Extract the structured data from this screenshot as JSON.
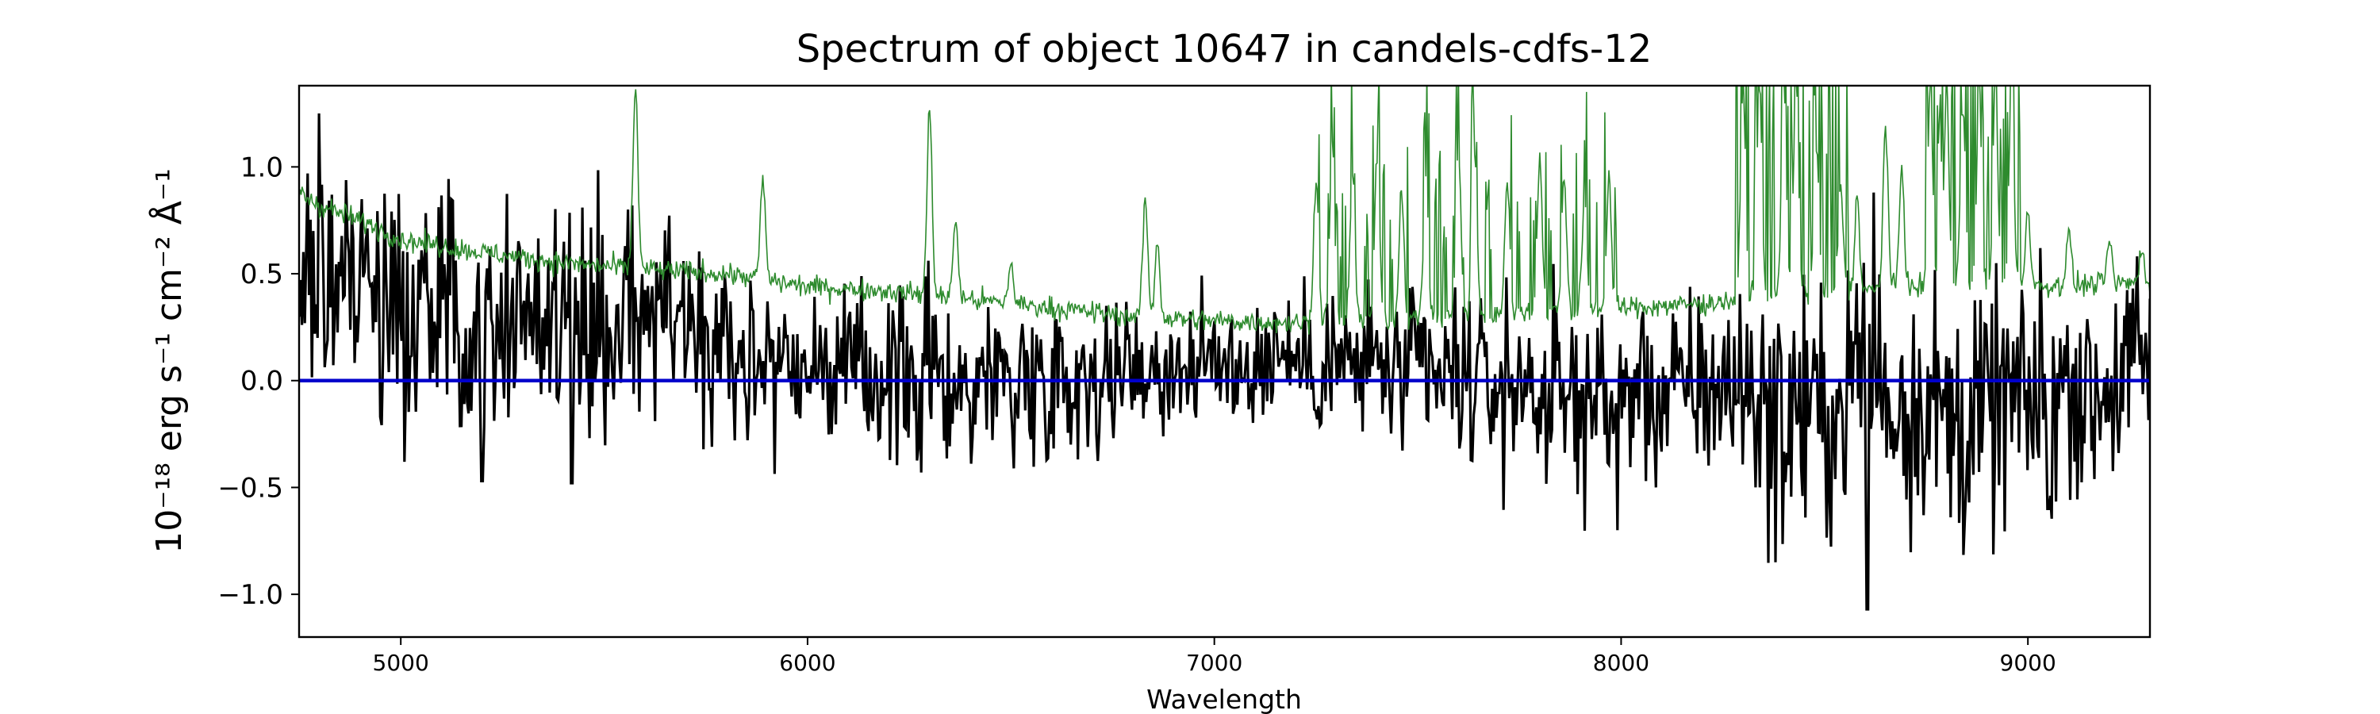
{
  "chart_data": {
    "type": "line",
    "title": "Spectrum of object 10647 in candels-cdfs-12",
    "xlabel": "Wavelength",
    "ylabel": "10⁻¹⁸ erg s⁻¹ cm⁻² Å⁻¹",
    "xlim": [
      4750,
      9300
    ],
    "ylim": [
      -1.2,
      1.38
    ],
    "xticks": [
      5000,
      6000,
      7000,
      8000,
      9000
    ],
    "xtick_labels": [
      "5000",
      "6000",
      "7000",
      "8000",
      "9000"
    ],
    "yticks": [
      -1.0,
      -0.5,
      0.0,
      0.5,
      1.0
    ],
    "ytick_labels": [
      "−1.0",
      "−0.5",
      "0.0",
      "0.5",
      "1.0"
    ],
    "grid": false,
    "colors": {
      "flux": "#000000",
      "sky": "#2e8b2e",
      "zero": "#0000cc",
      "axes": "#000000"
    },
    "series": [
      {
        "color": "#000000",
        "style": "flux",
        "x": [
          4750,
          4775,
          4800,
          4850,
          4900,
          4950,
          5000,
          5050,
          5100,
          5150,
          5200,
          5250,
          5300,
          5350,
          5400,
          5450,
          5500,
          5550,
          5600,
          5650,
          5700,
          5750,
          5800,
          5850,
          5900,
          5950,
          6000,
          6050,
          6100,
          6150,
          6200,
          6250,
          6300,
          6350,
          6400,
          6450,
          6500,
          6550,
          6600,
          6650,
          6700,
          6750,
          6800,
          6850,
          6900,
          6950,
          7000,
          7050,
          7100,
          7150,
          7200,
          7250,
          7300,
          7350,
          7400,
          7450,
          7500,
          7550,
          7600,
          7650,
          7700,
          7750,
          7800,
          7850,
          7900,
          7950,
          8000,
          8050,
          8100,
          8150,
          8200,
          8250,
          8300,
          8350,
          8400,
          8450,
          8500,
          8550,
          8600,
          8625,
          8650,
          8700,
          8750,
          8800,
          8850,
          8900,
          8950,
          9000,
          9050,
          9100,
          9150,
          9200,
          9250,
          9300
        ],
        "y": [
          0.5,
          0.65,
          0.55,
          0.45,
          0.5,
          0.4,
          0.35,
          0.35,
          0.3,
          0.3,
          0.35,
          0.3,
          0.35,
          0.3,
          0.3,
          0.35,
          0.25,
          0.3,
          0.3,
          0.35,
          0.3,
          0.2,
          0.2,
          0.1,
          0.15,
          0.1,
          0.1,
          0.05,
          0.05,
          0.0,
          0.05,
          0.0,
          0.05,
          0.0,
          -0.05,
          0.05,
          0.0,
          0.0,
          0.05,
          0.0,
          0.05,
          0.0,
          0.1,
          0.05,
          0.05,
          0.1,
          0.05,
          0.1,
          0.05,
          0.15,
          0.1,
          0.05,
          0.1,
          0.05,
          0.1,
          0.0,
          0.05,
          0.0,
          0.0,
          0.0,
          -0.05,
          0.0,
          -0.05,
          -0.1,
          -0.05,
          -0.1,
          -0.1,
          0.0,
          -0.1,
          -0.05,
          0.0,
          -0.05,
          0.0,
          -0.1,
          -0.2,
          -0.1,
          -0.2,
          -0.1,
          0.2,
          0.1,
          -0.1,
          -0.1,
          -0.05,
          -0.2,
          -0.2,
          -0.15,
          -0.1,
          -0.1,
          -0.15,
          0.05,
          -0.1,
          0.0,
          0.05,
          0.1
        ],
        "noise_amplitude": [
          0.25,
          0.3,
          0.3,
          0.3,
          0.28,
          0.28,
          0.25,
          0.25,
          0.25,
          0.25,
          0.25,
          0.25,
          0.25,
          0.25,
          0.25,
          0.25,
          0.25,
          0.25,
          0.25,
          0.25,
          0.25,
          0.25,
          0.25,
          0.22,
          0.22,
          0.2,
          0.2,
          0.18,
          0.18,
          0.18,
          0.18,
          0.2,
          0.2,
          0.18,
          0.18,
          0.18,
          0.18,
          0.18,
          0.18,
          0.18,
          0.18,
          0.16,
          0.16,
          0.16,
          0.16,
          0.16,
          0.16,
          0.16,
          0.16,
          0.16,
          0.16,
          0.16,
          0.16,
          0.18,
          0.18,
          0.18,
          0.18,
          0.2,
          0.2,
          0.2,
          0.2,
          0.2,
          0.2,
          0.22,
          0.22,
          0.22,
          0.25,
          0.22,
          0.22,
          0.22,
          0.22,
          0.22,
          0.25,
          0.28,
          0.3,
          0.28,
          0.28,
          0.3,
          0.3,
          0.4,
          0.3,
          0.3,
          0.3,
          0.3,
          0.3,
          0.28,
          0.28,
          0.25,
          0.25,
          0.25,
          0.25,
          0.25,
          0.25,
          0.25
        ],
        "spikes": [
          [
            4800,
            1.25
          ],
          [
            5010,
            -0.38
          ],
          [
            5200,
            -0.47
          ],
          [
            5420,
            -0.48
          ],
          [
            5570,
            0.82
          ],
          [
            6280,
            -0.43
          ],
          [
            7990,
            -0.7
          ],
          [
            8380,
            -0.85
          ],
          [
            8605,
            -1.07
          ],
          [
            8620,
            0.88
          ],
          [
            9030,
            0.62
          ],
          [
            9050,
            -0.6
          ]
        ]
      },
      {
        "color": "#2e8b2e",
        "style": "sky",
        "x": [
          4750,
          4800,
          4900,
          5000,
          5200,
          5400,
          5600,
          5800,
          6000,
          6200,
          6400,
          6600,
          6800,
          7000,
          7200,
          7400,
          7600,
          7800,
          8000,
          8200,
          8400,
          8600,
          8800,
          9000,
          9300
        ],
        "y": [
          0.88,
          0.82,
          0.75,
          0.66,
          0.6,
          0.55,
          0.52,
          0.5,
          0.44,
          0.42,
          0.38,
          0.34,
          0.3,
          0.28,
          0.27,
          0.28,
          0.3,
          0.32,
          0.34,
          0.36,
          0.4,
          0.42,
          0.44,
          0.44,
          0.46
        ],
        "emission_lines": [
          [
            4830,
            0.8
          ],
          [
            5577,
            1.38
          ],
          [
            5890,
            0.95
          ],
          [
            6300,
            1.28
          ],
          [
            6364,
            0.75
          ],
          [
            6500,
            0.55
          ],
          [
            6830,
            0.85
          ],
          [
            6860,
            0.65
          ],
          [
            7250,
            0.95
          ],
          [
            7290,
            1.1
          ],
          [
            7340,
            0.95
          ],
          [
            7400,
            1.05
          ],
          [
            7460,
            0.9
          ],
          [
            7520,
            0.95
          ],
          [
            7600,
            1.1
          ],
          [
            7640,
            1.05
          ],
          [
            7720,
            0.95
          ],
          [
            7800,
            1.05
          ],
          [
            7860,
            0.95
          ],
          [
            7910,
            0.85
          ],
          [
            7970,
            0.95
          ],
          [
            8300,
            1.38
          ],
          [
            8340,
            1.38
          ],
          [
            8400,
            1.38
          ],
          [
            8430,
            1.38
          ],
          [
            8480,
            1.1
          ],
          [
            8540,
            0.9
          ],
          [
            8580,
            0.85
          ],
          [
            8650,
            1.2
          ],
          [
            8690,
            1.0
          ],
          [
            8760,
            1.38
          ],
          [
            8800,
            1.38
          ],
          [
            8840,
            1.3
          ],
          [
            8880,
            1.38
          ],
          [
            8920,
            1.38
          ],
          [
            8960,
            1.38
          ],
          [
            9000,
            0.8
          ],
          [
            9100,
            0.7
          ],
          [
            9200,
            0.65
          ],
          [
            9280,
            0.62
          ]
        ]
      },
      {
        "color": "#0000cc",
        "style": "zero",
        "x": [
          4750,
          9300
        ],
        "y": [
          0.0,
          0.0
        ]
      }
    ]
  }
}
